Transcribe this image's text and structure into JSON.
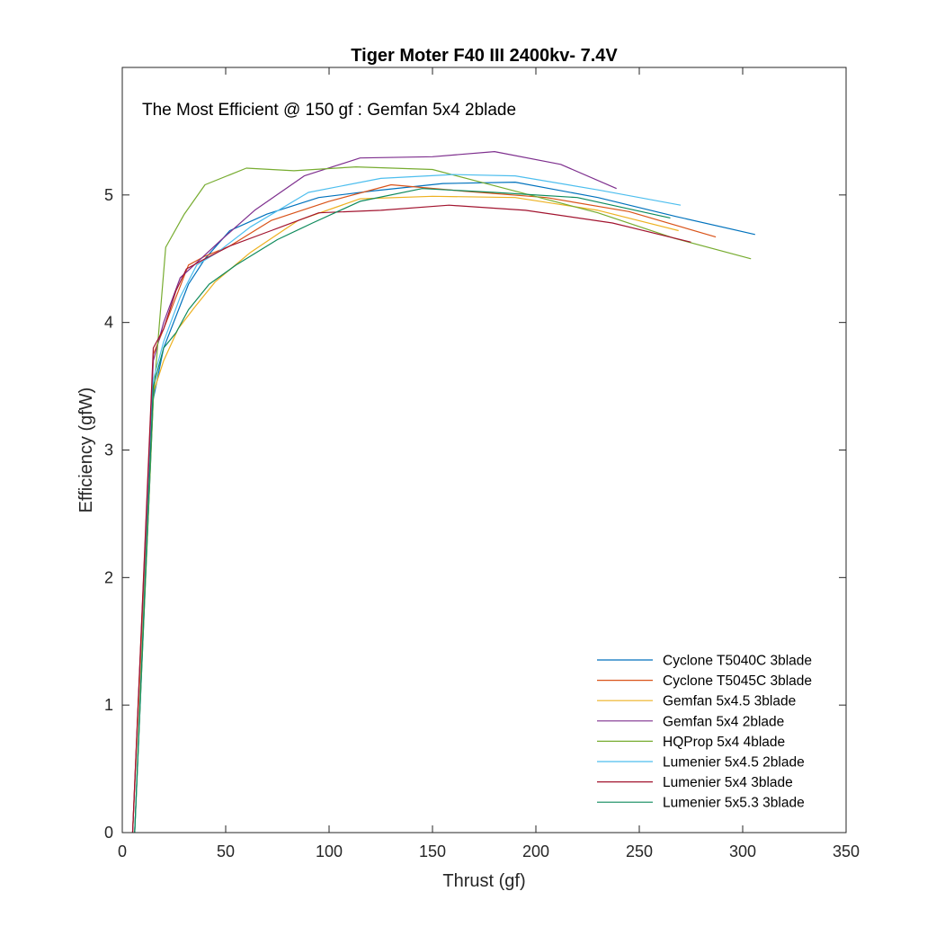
{
  "chart_data": {
    "type": "line",
    "title": "Tiger Moter F40 III 2400kv- 7.4V",
    "xlabel": "Thrust (gf)",
    "ylabel": "Efficiency (gfW)",
    "annotation": "The Most Efficient @ 150 gf :  Gemfan 5x4 2blade",
    "xlim": [
      0,
      350
    ],
    "ylim": [
      0,
      6
    ],
    "xticks": [
      0,
      50,
      100,
      150,
      200,
      250,
      300,
      350
    ],
    "yticks": [
      0,
      1,
      2,
      3,
      4,
      5
    ],
    "grid": false,
    "box": true,
    "legend_position": "bottom-right",
    "series": [
      {
        "name": "Cyclone T5040C 3blade",
        "color": "#0072BD",
        "x": [
          6,
          15,
          20,
          26,
          32,
          40,
          52,
          70,
          95,
          120,
          155,
          190,
          230,
          268,
          306
        ],
        "y": [
          0,
          3.4,
          3.8,
          4.05,
          4.3,
          4.5,
          4.72,
          4.85,
          4.98,
          5.03,
          5.09,
          5.1,
          4.98,
          4.83,
          4.69
        ]
      },
      {
        "name": "Cyclone T5045C 3blade",
        "color": "#D95319",
        "x": [
          5,
          15,
          20,
          26,
          32,
          40,
          52,
          72,
          100,
          130,
          165,
          205,
          245,
          287
        ],
        "y": [
          0,
          3.75,
          3.95,
          4.2,
          4.45,
          4.52,
          4.6,
          4.8,
          4.95,
          5.08,
          5.03,
          4.98,
          4.87,
          4.67
        ]
      },
      {
        "name": "Gemfan 5x4.5 3blade",
        "color": "#EDB120",
        "x": [
          5,
          15,
          20,
          27,
          35,
          45,
          62,
          85,
          115,
          150,
          190,
          230,
          269
        ],
        "y": [
          0,
          3.45,
          3.7,
          3.95,
          4.12,
          4.32,
          4.55,
          4.8,
          4.97,
          4.99,
          4.98,
          4.88,
          4.72
        ]
      },
      {
        "name": "Gemfan 5x4 2blade",
        "color": "#7E2F8E",
        "x": [
          5,
          15,
          20,
          28,
          38,
          48,
          64,
          88,
          115,
          150,
          180,
          212,
          239
        ],
        "y": [
          0,
          3.7,
          4.0,
          4.35,
          4.5,
          4.65,
          4.88,
          5.15,
          5.29,
          5.3,
          5.34,
          5.24,
          5.05
        ]
      },
      {
        "name": "HQProp 5x4 4blade",
        "color": "#77AC30",
        "x": [
          6,
          15,
          18,
          21,
          30,
          40,
          60,
          83,
          113,
          150,
          190,
          230,
          267,
          304
        ],
        "y": [
          0,
          3.4,
          4.0,
          4.59,
          4.85,
          5.08,
          5.21,
          5.19,
          5.22,
          5.2,
          5.03,
          4.86,
          4.66,
          4.5
        ]
      },
      {
        "name": "Lumenier 5x4.5 2blade",
        "color": "#4DBEEE",
        "x": [
          6,
          15,
          20,
          28,
          36,
          46,
          62,
          90,
          125,
          160,
          190,
          230,
          270
        ],
        "y": [
          0,
          3.55,
          3.85,
          4.2,
          4.45,
          4.55,
          4.75,
          5.02,
          5.13,
          5.16,
          5.15,
          5.04,
          4.92
        ]
      },
      {
        "name": "Lumenier 5x4 3blade",
        "color": "#A2142F",
        "x": [
          5,
          15,
          20,
          26,
          31,
          40,
          52,
          72,
          95,
          125,
          158,
          195,
          237,
          275
        ],
        "y": [
          0,
          3.8,
          3.95,
          4.25,
          4.42,
          4.5,
          4.6,
          4.72,
          4.86,
          4.88,
          4.92,
          4.88,
          4.78,
          4.63
        ]
      },
      {
        "name": "Lumenier 5x5.3 3blade",
        "color": "#0E8A5C",
        "x": [
          6,
          15,
          20,
          26,
          32,
          42,
          55,
          75,
          92,
          115,
          145,
          180,
          220,
          265
        ],
        "y": [
          0,
          3.5,
          3.8,
          3.92,
          4.1,
          4.3,
          4.45,
          4.65,
          4.78,
          4.95,
          5.05,
          5.02,
          4.98,
          4.82
        ]
      }
    ]
  }
}
